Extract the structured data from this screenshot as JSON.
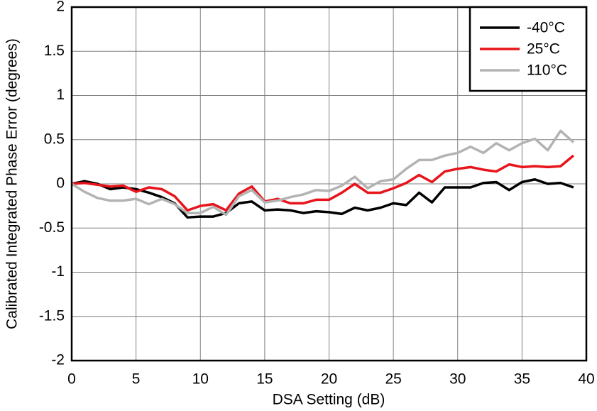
{
  "chart_data": {
    "type": "line",
    "x_label": "DSA Setting (dB)",
    "y_label": "Calibrated Integrated Phase Error (degrees)",
    "x": [
      0,
      1,
      2,
      3,
      4,
      5,
      6,
      7,
      8,
      9,
      10,
      11,
      12,
      13,
      14,
      15,
      16,
      17,
      18,
      19,
      20,
      21,
      22,
      23,
      24,
      25,
      26,
      27,
      28,
      29,
      30,
      31,
      32,
      33,
      34,
      35,
      36,
      37,
      38,
      39
    ],
    "series": [
      {
        "name": "-40°C",
        "color": "#000000",
        "values": [
          0,
          0.03,
          0,
          -0.06,
          -0.04,
          -0.06,
          -0.1,
          -0.15,
          -0.22,
          -0.38,
          -0.37,
          -0.37,
          -0.33,
          -0.22,
          -0.2,
          -0.3,
          -0.29,
          -0.3,
          -0.33,
          -0.31,
          -0.32,
          -0.34,
          -0.27,
          -0.3,
          -0.27,
          -0.22,
          -0.24,
          -0.1,
          -0.21,
          -0.04,
          -0.04,
          -0.04,
          0.01,
          0.02,
          -0.07,
          0.02,
          0.05,
          0,
          0.01,
          -0.04
        ]
      },
      {
        "name": "25°C",
        "color": "#e8141b",
        "values": [
          0,
          0.01,
          -0.01,
          -0.03,
          -0.02,
          -0.09,
          -0.04,
          -0.06,
          -0.14,
          -0.3,
          -0.25,
          -0.23,
          -0.3,
          -0.11,
          -0.03,
          -0.2,
          -0.17,
          -0.22,
          -0.22,
          -0.18,
          -0.18,
          -0.1,
          0,
          -0.1,
          -0.1,
          -0.05,
          0.01,
          0.1,
          0.02,
          0.14,
          0.17,
          0.19,
          0.16,
          0.14,
          0.22,
          0.19,
          0.2,
          0.19,
          0.2,
          0.32
        ]
      },
      {
        "name": "110°C",
        "color": "#b3b3b3",
        "values": [
          0,
          -0.09,
          -0.16,
          -0.19,
          -0.19,
          -0.17,
          -0.23,
          -0.17,
          -0.23,
          -0.33,
          -0.33,
          -0.26,
          -0.35,
          -0.14,
          -0.07,
          -0.21,
          -0.19,
          -0.15,
          -0.12,
          -0.07,
          -0.08,
          -0.02,
          0.08,
          -0.05,
          0.03,
          0.05,
          0.17,
          0.27,
          0.27,
          0.32,
          0.35,
          0.42,
          0.35,
          0.46,
          0.38,
          0.46,
          0.51,
          0.38,
          0.6,
          0.47
        ]
      }
    ],
    "xlim": [
      0,
      40
    ],
    "xticks": [
      0,
      5,
      10,
      15,
      20,
      25,
      30,
      35,
      40
    ],
    "ylim": [
      -2,
      2
    ],
    "yticks": [
      -2,
      -1.5,
      -1,
      -0.5,
      0,
      0.5,
      1,
      1.5,
      2
    ],
    "grid": true,
    "legend": "upper-right"
  }
}
